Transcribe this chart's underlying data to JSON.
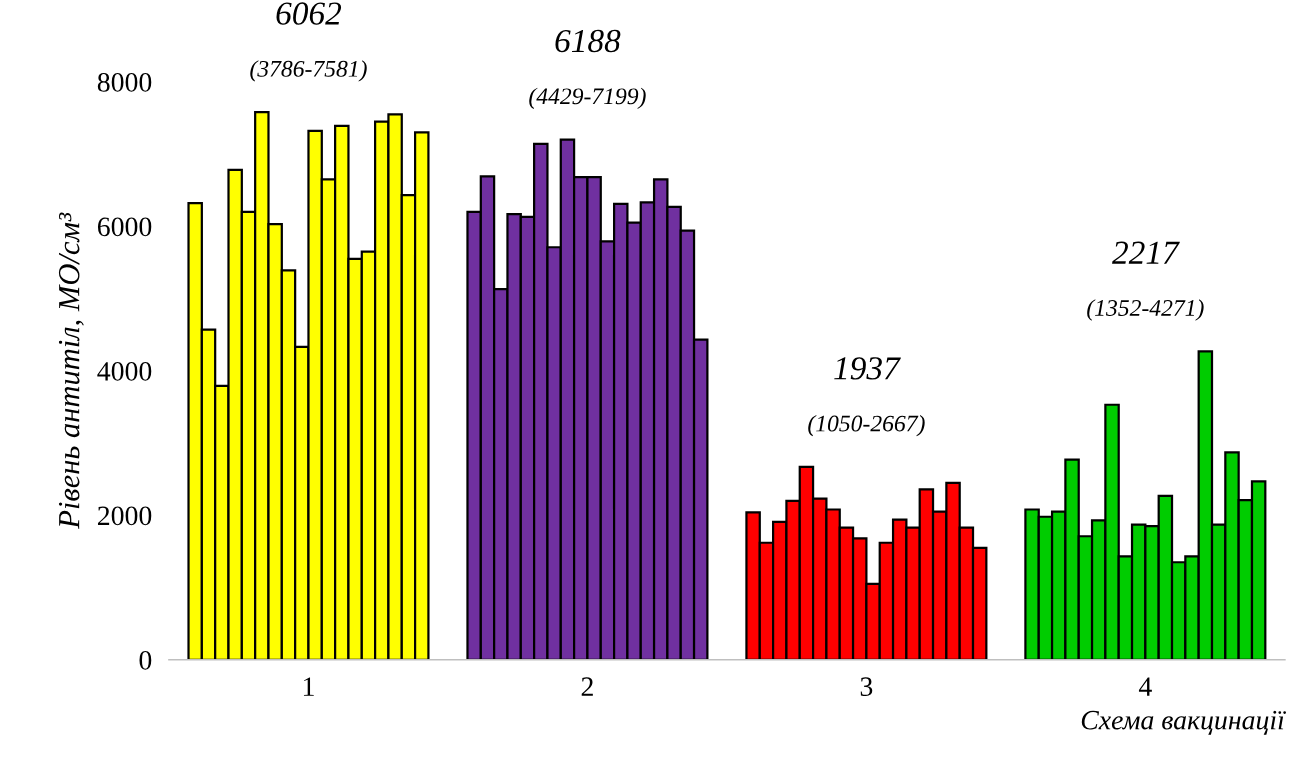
{
  "chart_data": {
    "type": "bar",
    "xlabel": "Схема вакцинації",
    "ylabel": "Рівень антитіл, МО/см³",
    "categories": [
      "1",
      "2",
      "3",
      "4"
    ],
    "ylim": [
      0,
      8000
    ],
    "yticks": [
      0,
      2000,
      4000,
      6000,
      8000
    ],
    "grid": false,
    "legend": false,
    "series": [
      {
        "colors": [
          "#ffff00",
          "#7030a0",
          "#ff0000",
          "#00cc00"
        ],
        "values": [
          6320,
          6200,
          2040,
          2080
        ]
      },
      {
        "colors": [
          "#ffff00",
          "#7030a0",
          "#ff0000",
          "#00cc00"
        ],
        "values": [
          4570,
          6690,
          1620,
          1980
        ]
      },
      {
        "colors": [
          "#ffff00",
          "#7030a0",
          "#ff0000",
          "#00cc00"
        ],
        "values": [
          3790,
          5130,
          1910,
          2050
        ]
      },
      {
        "colors": [
          "#ffff00",
          "#7030a0",
          "#ff0000",
          "#00cc00"
        ],
        "values": [
          6780,
          6170,
          2200,
          2770
        ]
      },
      {
        "colors": [
          "#ffff00",
          "#7030a0",
          "#ff0000",
          "#00cc00"
        ],
        "values": [
          6200,
          6130,
          2670,
          1710
        ]
      },
      {
        "colors": [
          "#ffff00",
          "#7030a0",
          "#ff0000",
          "#00cc00"
        ],
        "values": [
          7580,
          7140,
          2230,
          1930
        ]
      },
      {
        "colors": [
          "#ffff00",
          "#7030a0",
          "#ff0000",
          "#00cc00"
        ],
        "values": [
          6030,
          5710,
          2080,
          3530
        ]
      },
      {
        "colors": [
          "#ffff00",
          "#7030a0",
          "#ff0000",
          "#00cc00"
        ],
        "values": [
          5390,
          7200,
          1830,
          1430
        ]
      },
      {
        "colors": [
          "#ffff00",
          "#7030a0",
          "#ff0000",
          "#00cc00"
        ],
        "values": [
          4330,
          6680,
          1680,
          1870
        ]
      },
      {
        "colors": [
          "#ffff00",
          "#7030a0",
          "#ff0000",
          "#00cc00"
        ],
        "values": [
          7320,
          6680,
          1050,
          1850
        ]
      },
      {
        "colors": [
          "#ffff00",
          "#7030a0",
          "#ff0000",
          "#00cc00"
        ],
        "values": [
          6650,
          5790,
          1620,
          2270
        ]
      },
      {
        "colors": [
          "#ffff00",
          "#7030a0",
          "#ff0000",
          "#00cc00"
        ],
        "values": [
          7390,
          6310,
          1940,
          1350
        ]
      },
      {
        "colors": [
          "#ffff00",
          "#7030a0",
          "#ff0000",
          "#00cc00"
        ],
        "values": [
          5550,
          6050,
          1830,
          1430
        ]
      },
      {
        "colors": [
          "#ffff00",
          "#7030a0",
          "#ff0000",
          "#00cc00"
        ],
        "values": [
          5650,
          6330,
          2360,
          4270
        ]
      },
      {
        "colors": [
          "#ffff00",
          "#7030a0",
          "#ff0000",
          "#00cc00"
        ],
        "values": [
          7450,
          6650,
          2050,
          1870
        ]
      },
      {
        "colors": [
          "#ffff00",
          "#7030a0",
          "#ff0000",
          "#00cc00"
        ],
        "values": [
          7550,
          6270,
          2450,
          2870
        ]
      },
      {
        "colors": [
          "#ffff00",
          "#7030a0",
          "#ff0000",
          "#00cc00"
        ],
        "values": [
          6430,
          5940,
          1830,
          2210
        ]
      },
      {
        "colors": [
          "#ffff00",
          "#7030a0",
          "#ff0000",
          "#00cc00"
        ],
        "values": [
          7300,
          4430,
          1550,
          2470
        ]
      }
    ],
    "annotations": [
      "6062",
      "(3786-7581)",
      "6188",
      "(4429-7199)",
      "1937",
      "(1050-2667)",
      "2217",
      "(1352-4271)"
    ]
  }
}
